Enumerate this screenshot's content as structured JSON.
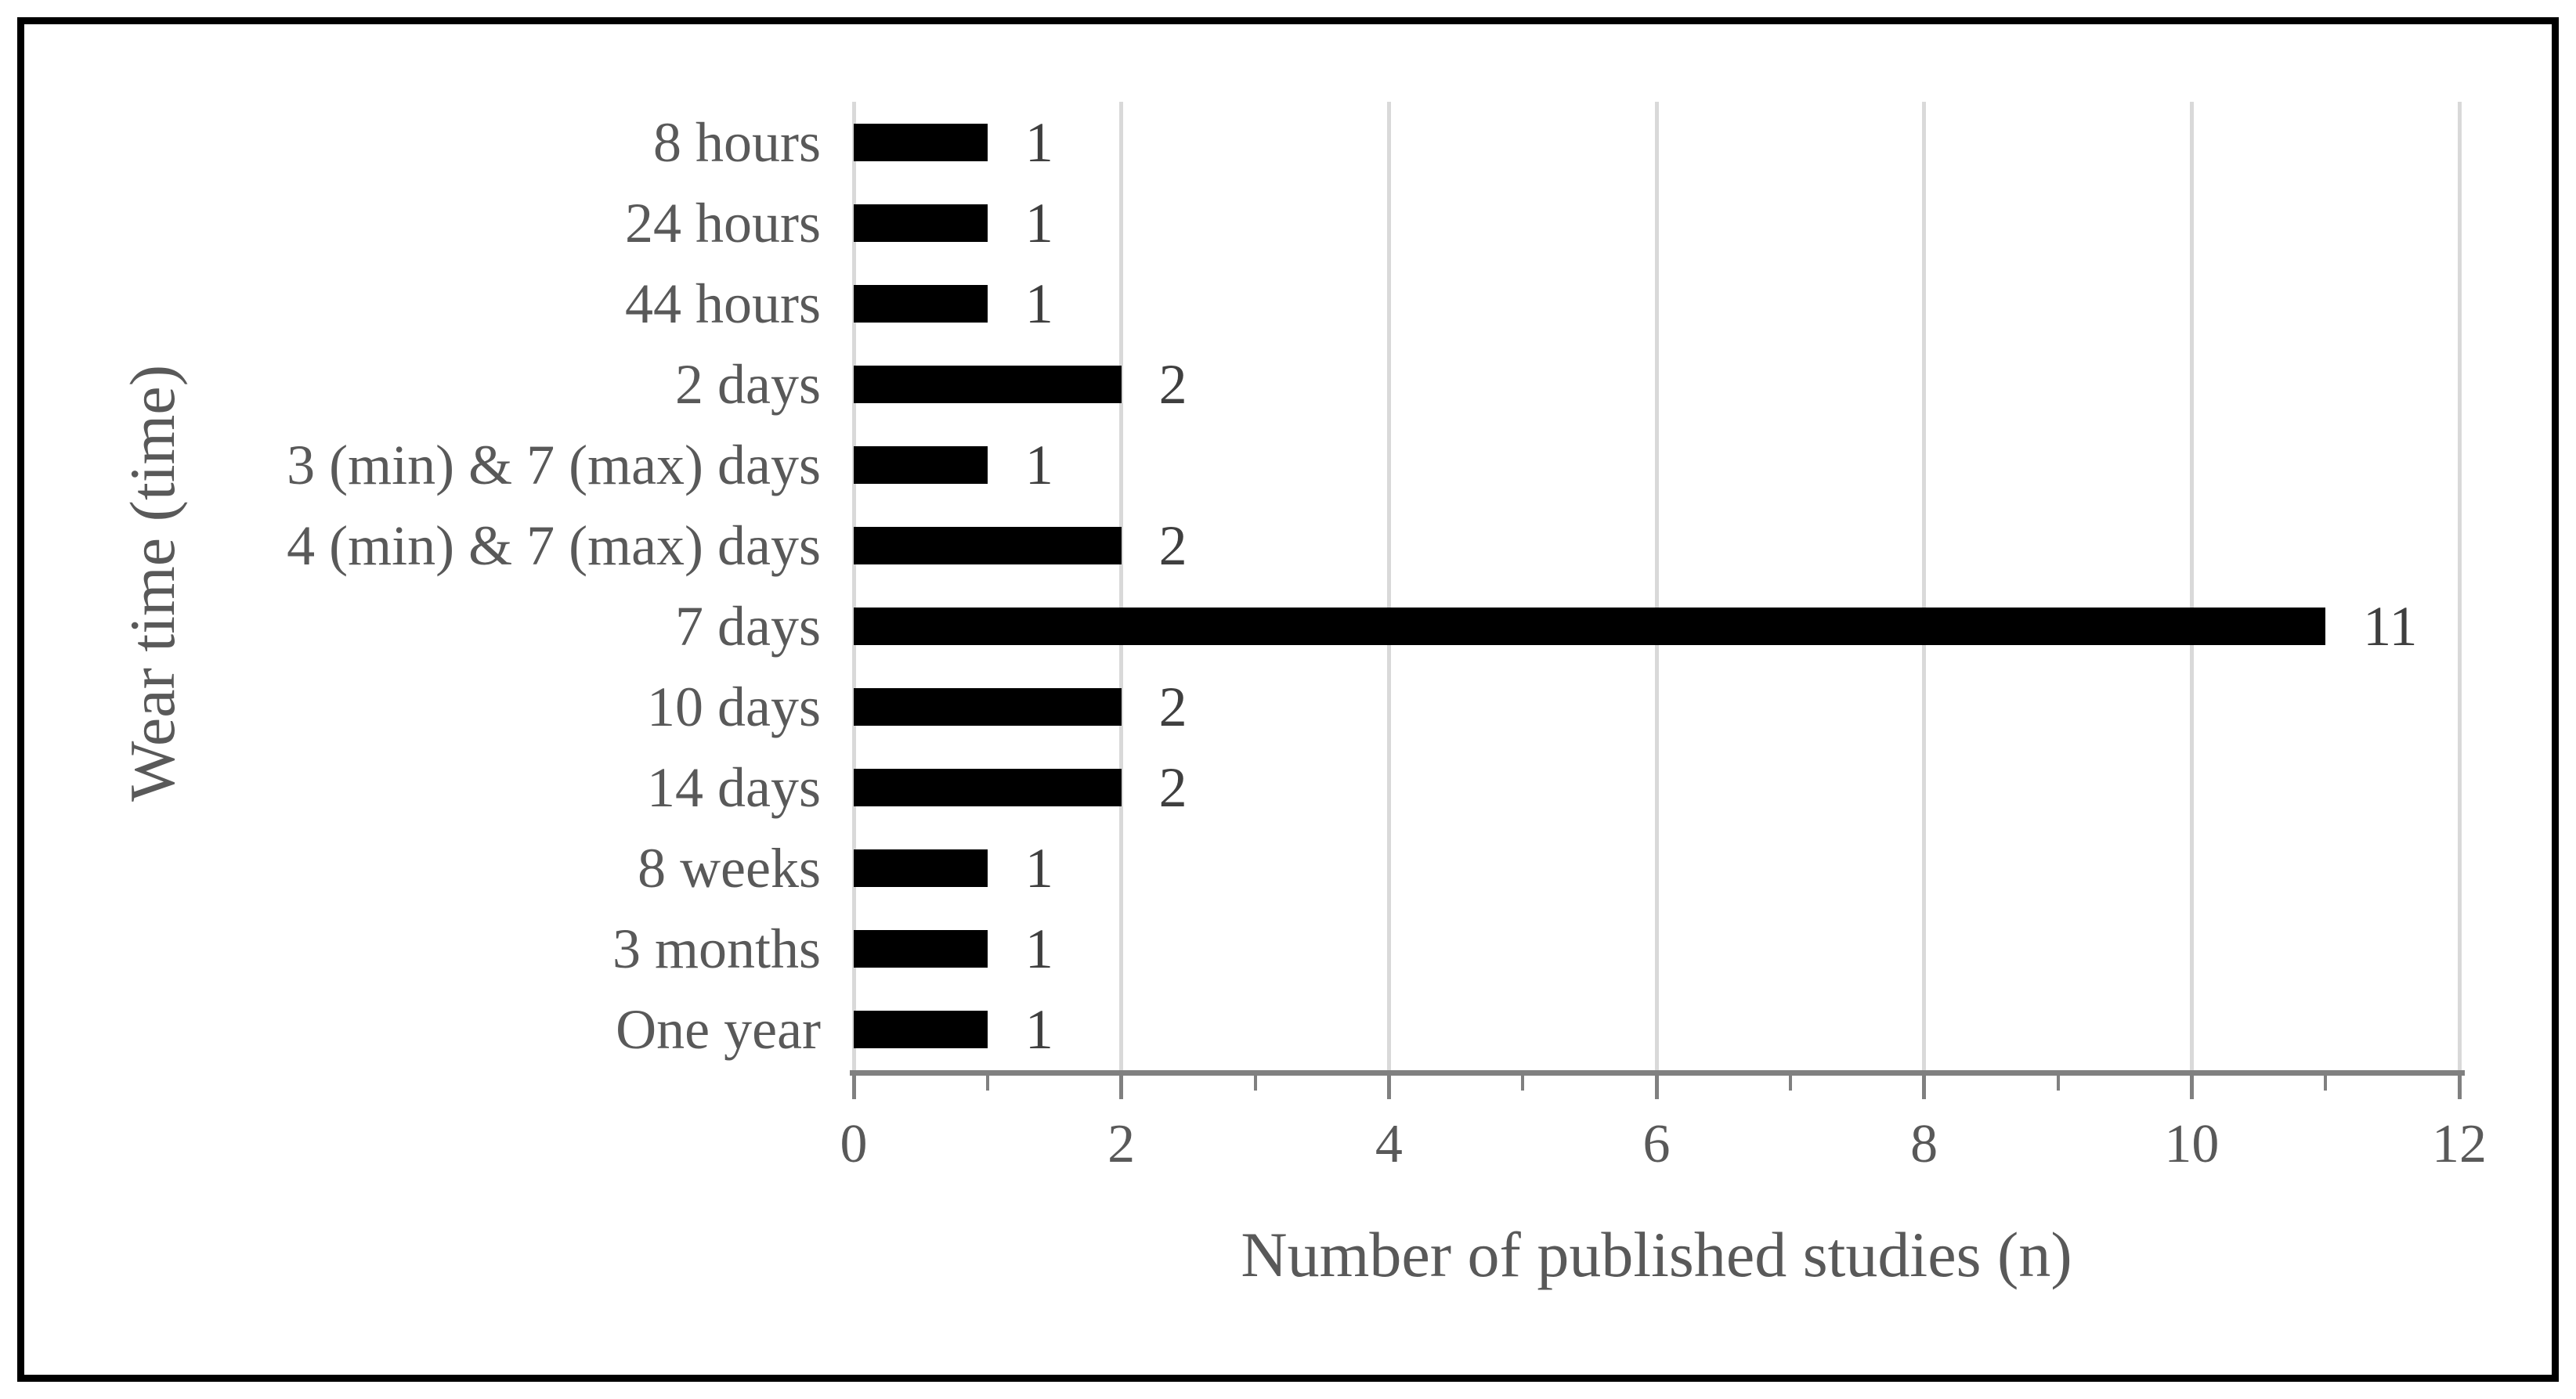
{
  "chart_data": {
    "type": "bar",
    "orientation": "horizontal",
    "categories": [
      "8 hours",
      "24 hours",
      "44 hours",
      "2 days",
      "3 (min) & 7 (max) days",
      "4 (min) & 7 (max) days",
      "7 days",
      "10 days",
      "14 days",
      "8 weeks",
      "3 months",
      "One year"
    ],
    "values": [
      1,
      1,
      1,
      2,
      1,
      2,
      11,
      2,
      2,
      1,
      1,
      1
    ],
    "data_labels": [
      1,
      1,
      1,
      2,
      1,
      2,
      11,
      2,
      2,
      1,
      1,
      1
    ],
    "xlabel": "Number of published studies (n)",
    "ylabel": "Wear time (time)",
    "xlim": [
      0,
      12
    ],
    "x_major_ticks": [
      0,
      2,
      4,
      6,
      8,
      10,
      12
    ],
    "x_minor_ticks": [
      1,
      3,
      5,
      7,
      9,
      11
    ],
    "grid": "vertical-major",
    "legend": "none",
    "bar_color": "#000000"
  },
  "colors": {
    "background": "#ffffff",
    "frame_border": "#000000",
    "bar": "#000000",
    "gridline": "#d9d9d9",
    "axis_line": "#808080",
    "axis_text": "#595959",
    "value_text": "#3f3f3f"
  }
}
